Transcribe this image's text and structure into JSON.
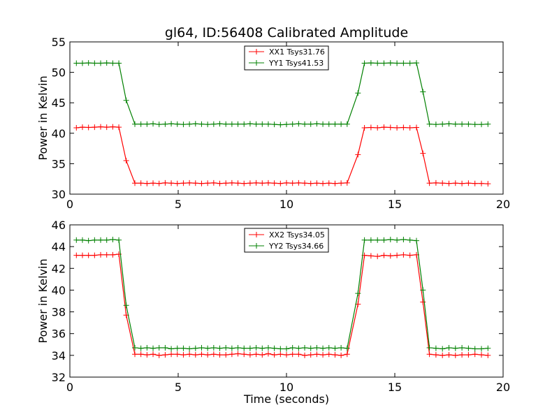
{
  "chart_data": {
    "title": "gl64, ID:56408 Calibrated Amplitude",
    "xlabel": "Time (seconds)",
    "panels": [
      {
        "type": "line",
        "ylabel": "Power in Kelvin",
        "xlim": [
          0,
          20
        ],
        "ylim": [
          30,
          55
        ],
        "xticks": [
          0,
          5,
          10,
          15,
          20
        ],
        "yticks": [
          30,
          35,
          40,
          45,
          50,
          55
        ],
        "legend": "top-center",
        "series": [
          {
            "name": "XX1 Tsys31.76",
            "color": "#ff0000",
            "x": [
              0.3,
              0.58,
              0.86,
              1.14,
              1.42,
              1.7,
              1.98,
              2.26,
              2.6,
              3.0,
              3.28,
              3.56,
              3.84,
              4.12,
              4.4,
              4.68,
              4.96,
              5.24,
              5.52,
              5.8,
              6.08,
              6.36,
              6.64,
              6.92,
              7.2,
              7.48,
              7.76,
              8.04,
              8.32,
              8.6,
              8.88,
              9.16,
              9.44,
              9.72,
              10.0,
              10.28,
              10.56,
              10.84,
              11.12,
              11.4,
              11.68,
              11.96,
              12.24,
              12.52,
              12.8,
              13.3,
              13.6,
              13.9,
              14.2,
              14.5,
              14.8,
              15.1,
              15.4,
              15.7,
              16.0,
              16.3,
              16.6,
              16.9,
              17.2,
              17.5,
              17.8,
              18.1,
              18.4,
              18.7,
              19.0,
              19.3
            ],
            "values": [
              40.9,
              41.0,
              40.95,
              41.0,
              41.05,
              41.0,
              41.05,
              41.0,
              35.5,
              31.8,
              31.8,
              31.75,
              31.8,
              31.75,
              31.85,
              31.8,
              31.75,
              31.8,
              31.85,
              31.8,
              31.75,
              31.8,
              31.85,
              31.75,
              31.8,
              31.85,
              31.8,
              31.75,
              31.8,
              31.85,
              31.8,
              31.85,
              31.8,
              31.75,
              31.85,
              31.8,
              31.85,
              31.8,
              31.75,
              31.8,
              31.75,
              31.8,
              31.75,
              31.8,
              31.85,
              36.5,
              40.9,
              40.95,
              40.9,
              41.0,
              40.95,
              40.9,
              40.95,
              40.9,
              40.95,
              36.7,
              31.8,
              31.85,
              31.8,
              31.75,
              31.8,
              31.75,
              31.8,
              31.75,
              31.75,
              31.7
            ]
          },
          {
            "name": "YY1 Tsys41.53",
            "color": "#008000",
            "x": [
              0.3,
              0.58,
              0.86,
              1.14,
              1.42,
              1.7,
              1.98,
              2.26,
              2.6,
              3.0,
              3.28,
              3.56,
              3.84,
              4.12,
              4.4,
              4.68,
              4.96,
              5.24,
              5.52,
              5.8,
              6.08,
              6.36,
              6.64,
              6.92,
              7.2,
              7.48,
              7.76,
              8.04,
              8.32,
              8.6,
              8.88,
              9.16,
              9.44,
              9.72,
              10.0,
              10.28,
              10.56,
              10.84,
              11.12,
              11.4,
              11.68,
              11.96,
              12.24,
              12.52,
              12.8,
              13.3,
              13.6,
              13.9,
              14.2,
              14.5,
              14.8,
              15.1,
              15.4,
              15.7,
              16.0,
              16.3,
              16.6,
              16.9,
              17.2,
              17.5,
              17.8,
              18.1,
              18.4,
              18.7,
              19.0,
              19.3
            ],
            "values": [
              51.5,
              51.5,
              51.55,
              51.5,
              51.5,
              51.55,
              51.5,
              51.5,
              45.4,
              41.5,
              41.5,
              41.5,
              41.55,
              41.45,
              41.5,
              41.55,
              41.5,
              41.45,
              41.5,
              41.55,
              41.5,
              41.45,
              41.5,
              41.55,
              41.5,
              41.5,
              41.5,
              41.5,
              41.55,
              41.5,
              41.5,
              41.5,
              41.45,
              41.4,
              41.45,
              41.5,
              41.55,
              41.5,
              41.5,
              41.55,
              41.5,
              41.5,
              41.5,
              41.5,
              41.5,
              46.6,
              51.5,
              51.55,
              51.5,
              51.5,
              51.55,
              51.5,
              51.5,
              51.5,
              51.55,
              46.8,
              41.5,
              41.45,
              41.5,
              41.55,
              41.5,
              41.5,
              41.5,
              41.45,
              41.45,
              41.5
            ]
          }
        ]
      },
      {
        "type": "line",
        "ylabel": "Power in Kelvin",
        "xlim": [
          0,
          20
        ],
        "ylim": [
          32,
          46
        ],
        "xticks": [
          0,
          5,
          10,
          15,
          20
        ],
        "yticks": [
          32,
          34,
          36,
          38,
          40,
          42,
          44,
          46
        ],
        "legend": "top-center",
        "series": [
          {
            "name": "XX2 Tsys34.05",
            "color": "#ff0000",
            "x": [
              0.3,
              0.58,
              0.86,
              1.14,
              1.42,
              1.7,
              1.98,
              2.26,
              2.6,
              3.0,
              3.28,
              3.56,
              3.84,
              4.12,
              4.4,
              4.68,
              4.96,
              5.24,
              5.52,
              5.8,
              6.08,
              6.36,
              6.64,
              6.92,
              7.2,
              7.48,
              7.76,
              8.04,
              8.32,
              8.6,
              8.88,
              9.16,
              9.44,
              9.72,
              10.0,
              10.28,
              10.56,
              10.84,
              11.12,
              11.4,
              11.68,
              11.96,
              12.24,
              12.52,
              12.8,
              13.3,
              13.6,
              13.9,
              14.2,
              14.5,
              14.8,
              15.1,
              15.4,
              15.7,
              16.0,
              16.3,
              16.6,
              16.9,
              17.2,
              17.5,
              17.8,
              18.1,
              18.4,
              18.7,
              19.0,
              19.3
            ],
            "values": [
              43.2,
              43.2,
              43.2,
              43.2,
              43.25,
              43.25,
              43.25,
              43.3,
              37.7,
              34.1,
              34.1,
              34.05,
              34.1,
              34.0,
              34.05,
              34.1,
              34.1,
              34.05,
              34.1,
              34.05,
              34.1,
              34.05,
              34.1,
              34.05,
              34.05,
              34.1,
              34.15,
              34.1,
              34.05,
              34.1,
              34.05,
              34.15,
              34.05,
              34.1,
              34.05,
              34.1,
              34.1,
              34.0,
              34.05,
              34.1,
              34.05,
              34.1,
              34.05,
              34.0,
              34.1,
              38.7,
              43.2,
              43.15,
              43.1,
              43.2,
              43.15,
              43.2,
              43.25,
              43.2,
              43.25,
              38.9,
              34.1,
              34.05,
              34.0,
              34.05,
              34.0,
              34.05,
              34.05,
              34.1,
              34.05,
              34.0
            ]
          },
          {
            "name": "YY2 Tsys34.66",
            "color": "#008000",
            "x": [
              0.3,
              0.58,
              0.86,
              1.14,
              1.42,
              1.7,
              1.98,
              2.26,
              2.6,
              3.0,
              3.28,
              3.56,
              3.84,
              4.12,
              4.4,
              4.68,
              4.96,
              5.24,
              5.52,
              5.8,
              6.08,
              6.36,
              6.64,
              6.92,
              7.2,
              7.48,
              7.76,
              8.04,
              8.32,
              8.6,
              8.88,
              9.16,
              9.44,
              9.72,
              10.0,
              10.28,
              10.56,
              10.84,
              11.12,
              11.4,
              11.68,
              11.96,
              12.24,
              12.52,
              12.8,
              13.3,
              13.6,
              13.9,
              14.2,
              14.5,
              14.8,
              15.1,
              15.4,
              15.7,
              16.0,
              16.3,
              16.6,
              16.9,
              17.2,
              17.5,
              17.8,
              18.1,
              18.4,
              18.7,
              19.0,
              19.3
            ],
            "values": [
              44.6,
              44.6,
              44.55,
              44.6,
              44.6,
              44.6,
              44.65,
              44.6,
              38.6,
              34.7,
              34.65,
              34.7,
              34.65,
              34.7,
              34.7,
              34.6,
              34.65,
              34.65,
              34.6,
              34.65,
              34.7,
              34.65,
              34.7,
              34.65,
              34.7,
              34.65,
              34.7,
              34.65,
              34.65,
              34.7,
              34.65,
              34.7,
              34.65,
              34.6,
              34.6,
              34.7,
              34.65,
              34.7,
              34.65,
              34.7,
              34.65,
              34.7,
              34.65,
              34.7,
              34.65,
              39.7,
              44.6,
              44.6,
              44.6,
              44.6,
              44.65,
              44.6,
              44.65,
              44.6,
              44.55,
              40.0,
              34.7,
              34.65,
              34.6,
              34.7,
              34.65,
              34.7,
              34.65,
              34.6,
              34.6,
              34.65
            ]
          }
        ]
      }
    ]
  }
}
